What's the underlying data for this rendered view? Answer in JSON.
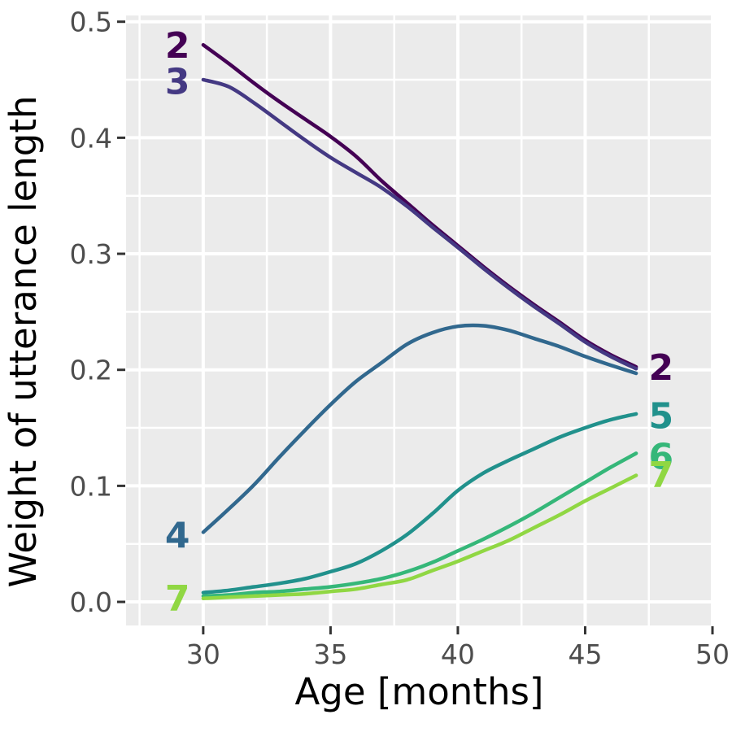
{
  "figure": {
    "background": "#FFFFFF"
  },
  "chart_data": {
    "type": "line",
    "title": "",
    "xlabel": "Age [months]",
    "ylabel": "Weight of utterance length",
    "xlim": [
      26.97,
      50
    ],
    "ylim": [
      -0.0203,
      0.5054
    ],
    "x_ticks": [
      30,
      35,
      40,
      45,
      50
    ],
    "x_tick_labels": [
      "30",
      "35",
      "40",
      "45",
      "50"
    ],
    "x_minor_ticks": [
      27.5,
      32.5,
      37.5,
      42.5,
      47.5
    ],
    "y_ticks": [
      0.0,
      0.1,
      0.2,
      0.3,
      0.4,
      0.5
    ],
    "y_tick_labels": [
      "0.0",
      "0.1",
      "0.2",
      "0.3",
      "0.4",
      "0.5"
    ],
    "y_minor_ticks": [
      0.05,
      0.15,
      0.25,
      0.35,
      0.45
    ],
    "grid": true,
    "legend_position": "direct-labels-on-lines",
    "x": [
      30,
      31,
      32,
      33,
      34,
      35,
      36,
      37,
      38,
      39,
      40,
      41,
      42,
      43,
      44,
      45,
      46,
      47
    ],
    "series": [
      {
        "name": "2",
        "color": "#440154",
        "values": [
          0.48,
          0.464,
          0.447,
          0.431,
          0.416,
          0.401,
          0.384,
          0.363,
          0.344,
          0.325,
          0.307,
          0.289,
          0.272,
          0.256,
          0.241,
          0.2255,
          0.213,
          0.2025
        ]
      },
      {
        "name": "3",
        "color": "#443983",
        "values": [
          0.45,
          0.444,
          0.43,
          0.414,
          0.398,
          0.383,
          0.37,
          0.357,
          0.341,
          0.323,
          0.3055,
          0.2875,
          0.2705,
          0.2545,
          0.2395,
          0.224,
          0.2115,
          0.201
        ]
      },
      {
        "name": "4",
        "color": "#31688e",
        "values": [
          0.06,
          0.08,
          0.101,
          0.125,
          0.148,
          0.17,
          0.19,
          0.206,
          0.222,
          0.232,
          0.2375,
          0.238,
          0.234,
          0.227,
          0.22,
          0.2115,
          0.204,
          0.197
        ]
      },
      {
        "name": "5",
        "color": "#21918c",
        "values": [
          0.008,
          0.01,
          0.013,
          0.016,
          0.02,
          0.026,
          0.033,
          0.044,
          0.058,
          0.076,
          0.096,
          0.111,
          0.122,
          0.132,
          0.142,
          0.15,
          0.157,
          0.162
        ]
      },
      {
        "name": "6",
        "color": "#35b779",
        "values": [
          0.005,
          0.006,
          0.008,
          0.009,
          0.011,
          0.013,
          0.016,
          0.02,
          0.026,
          0.034,
          0.044,
          0.054,
          0.065,
          0.077,
          0.09,
          0.103,
          0.116,
          0.128
        ]
      },
      {
        "name": "7",
        "color": "#90d743",
        "values": [
          0.003,
          0.004,
          0.005,
          0.006,
          0.007,
          0.009,
          0.011,
          0.015,
          0.019,
          0.027,
          0.035,
          0.044,
          0.053,
          0.064,
          0.075,
          0.087,
          0.098,
          0.109
        ]
      }
    ],
    "end_labels": [
      {
        "text": "2",
        "x": 28.99,
        "y": 0.48,
        "color": "#440154",
        "side": "left"
      },
      {
        "text": "3",
        "x": 28.99,
        "y": 0.449,
        "color": "#443983",
        "side": "left"
      },
      {
        "text": "4",
        "x": 28.99,
        "y": 0.058,
        "color": "#31688e",
        "side": "left"
      },
      {
        "text": "7",
        "x": 28.99,
        "y": 0.0035,
        "color": "#90d743",
        "side": "left"
      },
      {
        "text": "2",
        "x": 47.98,
        "y": 0.2025,
        "color": "#440154",
        "side": "right"
      },
      {
        "text": "5",
        "x": 47.98,
        "y": 0.161,
        "color": "#21918c",
        "side": "right"
      },
      {
        "text": "6",
        "x": 47.98,
        "y": 0.126,
        "color": "#35b779",
        "side": "right"
      },
      {
        "text": "7",
        "x": 47.98,
        "y": 0.11,
        "color": "#90d743",
        "side": "right"
      }
    ],
    "style": {
      "panel_bg": "#EBEBEB",
      "grid_color": "#FFFFFF",
      "tick_mark_color": "#333333",
      "tick_label_color": "#4D4D4D",
      "axis_title_color": "#000000"
    }
  }
}
